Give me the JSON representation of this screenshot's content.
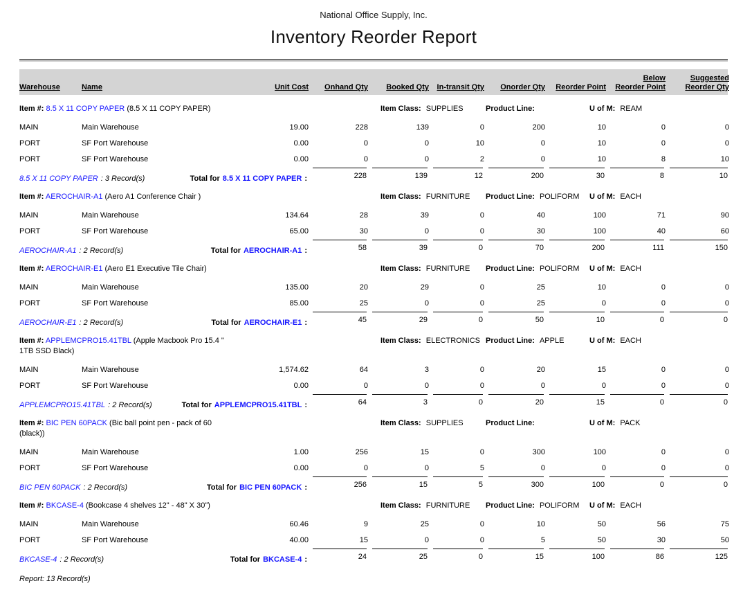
{
  "report": {
    "company": "National Office Supply, Inc.",
    "title": "Inventory Reorder Report",
    "footer": "Report: 13 Record(s)"
  },
  "colors": {
    "link_blue": "#1515ff",
    "header_band": "#d4d4d4"
  },
  "labels": {
    "item_no": "Item #:",
    "item_class": "Item Class:",
    "product_line": "Product Line:",
    "u_of_m": "U of M:",
    "total_for": "Total for",
    "total_colon": ":"
  },
  "headers": {
    "warehouse": "Warehouse",
    "name": "Name",
    "unit_cost": "Unit Cost",
    "onhand": "Onhand Qty",
    "booked": "Booked Qty",
    "in_transit": "In-transit Qty",
    "onorder": "Onorder Qty",
    "reorder_point": "Reorder Point",
    "below_reorder": "Below\nReorder Point",
    "suggested": "Suggested\nReorder Qty"
  },
  "items": [
    {
      "item_no": "8.5 X 11 COPY PAPER",
      "desc_line1": "(8.5 X 11 COPY PAPER)",
      "desc_line2": "",
      "item_class": "SUPPLIES",
      "product_line": "",
      "u_of_m": "REAM",
      "records": ": 3 Record(s)",
      "rows": [
        {
          "warehouse": "MAIN",
          "name": "Main Warehouse",
          "unit_cost": "19.00",
          "onhand": "228",
          "booked": "139",
          "in_transit": "0",
          "onorder": "200",
          "reorder_point": "10",
          "below_reorder": "0",
          "suggested": "0"
        },
        {
          "warehouse": "PORT",
          "name": "SF Port Warehouse",
          "unit_cost": "0.00",
          "onhand": "0",
          "booked": "0",
          "in_transit": "10",
          "onorder": "0",
          "reorder_point": "10",
          "below_reorder": "0",
          "suggested": "0"
        },
        {
          "warehouse": "PORT",
          "name": "SF Port Warehouse",
          "unit_cost": "0.00",
          "onhand": "0",
          "booked": "0",
          "in_transit": "2",
          "onorder": "0",
          "reorder_point": "10",
          "below_reorder": "8",
          "suggested": "10"
        }
      ],
      "total": {
        "onhand": "228",
        "booked": "139",
        "in_transit": "12",
        "onorder": "200",
        "reorder_point": "30",
        "below_reorder": "8",
        "suggested": "10"
      }
    },
    {
      "item_no": "AEROCHAIR-A1",
      "desc_line1": "(Aero A1 Conference Chair )",
      "desc_line2": "",
      "item_class": "FURNITURE",
      "product_line": "POLIFORM",
      "u_of_m": "EACH",
      "records": ": 2 Record(s)",
      "rows": [
        {
          "warehouse": "MAIN",
          "name": "Main Warehouse",
          "unit_cost": "134.64",
          "onhand": "28",
          "booked": "39",
          "in_transit": "0",
          "onorder": "40",
          "reorder_point": "100",
          "below_reorder": "71",
          "suggested": "90"
        },
        {
          "warehouse": "PORT",
          "name": "SF Port Warehouse",
          "unit_cost": "65.00",
          "onhand": "30",
          "booked": "0",
          "in_transit": "0",
          "onorder": "30",
          "reorder_point": "100",
          "below_reorder": "40",
          "suggested": "60"
        }
      ],
      "total": {
        "onhand": "58",
        "booked": "39",
        "in_transit": "0",
        "onorder": "70",
        "reorder_point": "200",
        "below_reorder": "111",
        "suggested": "150"
      }
    },
    {
      "item_no": "AEROCHAIR-E1",
      "desc_line1": "(Aero E1 Executive Tile Chair)",
      "desc_line2": "",
      "item_class": "FURNITURE",
      "product_line": "POLIFORM",
      "u_of_m": "EACH",
      "records": ": 2 Record(s)",
      "rows": [
        {
          "warehouse": "MAIN",
          "name": "Main Warehouse",
          "unit_cost": "135.00",
          "onhand": "20",
          "booked": "29",
          "in_transit": "0",
          "onorder": "25",
          "reorder_point": "10",
          "below_reorder": "0",
          "suggested": "0"
        },
        {
          "warehouse": "PORT",
          "name": "SF Port Warehouse",
          "unit_cost": "85.00",
          "onhand": "25",
          "booked": "0",
          "in_transit": "0",
          "onorder": "25",
          "reorder_point": "0",
          "below_reorder": "0",
          "suggested": "0"
        }
      ],
      "total": {
        "onhand": "45",
        "booked": "29",
        "in_transit": "0",
        "onorder": "50",
        "reorder_point": "10",
        "below_reorder": "0",
        "suggested": "0"
      }
    },
    {
      "item_no": "APPLEMCPRO15.41TBL",
      "desc_line1": "(Apple Macbook Pro 15.4 \"",
      "desc_line2": "1TB SSD Black)",
      "item_class": "ELECTRONICS",
      "product_line": "APPLE",
      "u_of_m": "EACH",
      "records": ": 2 Record(s)",
      "rows": [
        {
          "warehouse": "MAIN",
          "name": "Main Warehouse",
          "unit_cost": "1,574.62",
          "onhand": "64",
          "booked": "3",
          "in_transit": "0",
          "onorder": "20",
          "reorder_point": "15",
          "below_reorder": "0",
          "suggested": "0"
        },
        {
          "warehouse": "PORT",
          "name": "SF Port Warehouse",
          "unit_cost": "0.00",
          "onhand": "0",
          "booked": "0",
          "in_transit": "0",
          "onorder": "0",
          "reorder_point": "0",
          "below_reorder": "0",
          "suggested": "0"
        }
      ],
      "total": {
        "onhand": "64",
        "booked": "3",
        "in_transit": "0",
        "onorder": "20",
        "reorder_point": "15",
        "below_reorder": "0",
        "suggested": "0"
      }
    },
    {
      "item_no": "BIC PEN 60PACK",
      "desc_line1": "(Bic ball point pen - pack of 60",
      "desc_line2": "(black))",
      "item_class": "SUPPLIES",
      "product_line": "",
      "u_of_m": "PACK",
      "records": ": 2 Record(s)",
      "rows": [
        {
          "warehouse": "MAIN",
          "name": "Main Warehouse",
          "unit_cost": "1.00",
          "onhand": "256",
          "booked": "15",
          "in_transit": "0",
          "onorder": "300",
          "reorder_point": "100",
          "below_reorder": "0",
          "suggested": "0"
        },
        {
          "warehouse": "PORT",
          "name": "SF Port Warehouse",
          "unit_cost": "0.00",
          "onhand": "0",
          "booked": "0",
          "in_transit": "5",
          "onorder": "0",
          "reorder_point": "0",
          "below_reorder": "0",
          "suggested": "0"
        }
      ],
      "total": {
        "onhand": "256",
        "booked": "15",
        "in_transit": "5",
        "onorder": "300",
        "reorder_point": "100",
        "below_reorder": "0",
        "suggested": "0"
      }
    },
    {
      "item_no": "BKCASE-4",
      "desc_line1": "(Bookcase 4 shelves 12\" - 48\" X 30\")",
      "desc_line2": "",
      "item_class": "FURNITURE",
      "product_line": "POLIFORM",
      "u_of_m": "EACH",
      "records": ": 2 Record(s)",
      "rows": [
        {
          "warehouse": "MAIN",
          "name": "Main Warehouse",
          "unit_cost": "60.46",
          "onhand": "9",
          "booked": "25",
          "in_transit": "0",
          "onorder": "10",
          "reorder_point": "50",
          "below_reorder": "56",
          "suggested": "75"
        },
        {
          "warehouse": "PORT",
          "name": "SF Port Warehouse",
          "unit_cost": "40.00",
          "onhand": "15",
          "booked": "0",
          "in_transit": "0",
          "onorder": "5",
          "reorder_point": "50",
          "below_reorder": "30",
          "suggested": "50"
        }
      ],
      "total": {
        "onhand": "24",
        "booked": "25",
        "in_transit": "0",
        "onorder": "15",
        "reorder_point": "100",
        "below_reorder": "86",
        "suggested": "125"
      }
    }
  ]
}
